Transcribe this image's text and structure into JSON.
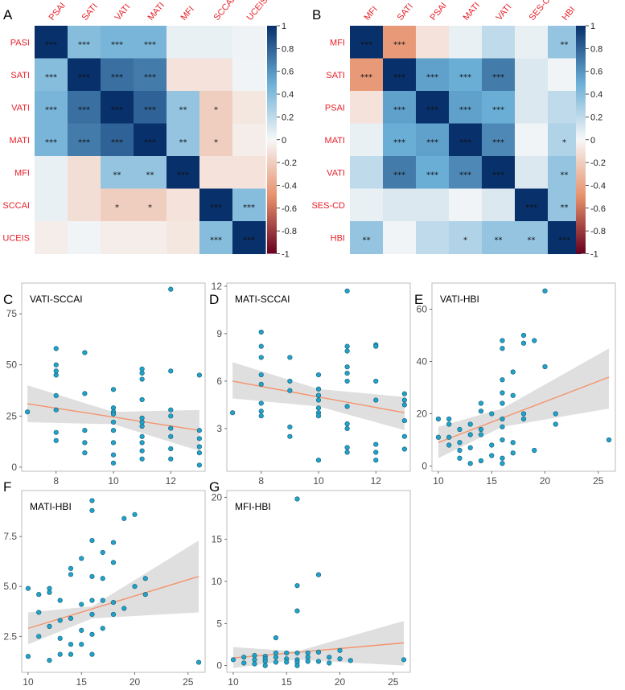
{
  "colors": {
    "neg_strong": "#67001f",
    "neg_mid": "#e6906a",
    "zero": "#f7f7f7",
    "pos_mid": "#6aaed6",
    "pos_strong": "#08306b",
    "point_fill": "#1fa3c8",
    "point_stroke": "#1a5a73",
    "line": "#f4936c",
    "band": "#d9d9d9",
    "label_red": "#e8202a"
  },
  "colorbar_ticks": [
    "1",
    "0.8",
    "0.6",
    "0.4",
    "0.2",
    "0",
    "-0.2",
    "-0.4",
    "-0.6",
    "-0.8",
    "-1"
  ],
  "chart_data": [
    {
      "type": "heatmap",
      "panel": "A",
      "col_labels": [
        "PSAI",
        "SATI",
        "VATI",
        "MATI",
        "MFI",
        "SCCAI",
        "UCEIS"
      ],
      "row_labels": [
        "PASI",
        "SATI",
        "VATI",
        "MATI",
        "MFI",
        "SCCAI",
        "UCEIS"
      ],
      "values": [
        [
          1.0,
          0.4,
          0.45,
          0.45,
          0.05,
          0.05,
          0.03
        ],
        [
          0.4,
          1.0,
          0.75,
          0.7,
          -0.1,
          -0.1,
          0.02
        ],
        [
          0.45,
          0.75,
          1.0,
          0.8,
          0.35,
          -0.2,
          -0.08
        ],
        [
          0.45,
          0.7,
          0.8,
          1.0,
          0.35,
          -0.2,
          -0.05
        ],
        [
          0.05,
          -0.12,
          0.35,
          0.35,
          1.0,
          -0.1,
          -0.1
        ],
        [
          0.05,
          -0.12,
          -0.2,
          -0.2,
          -0.1,
          1.0,
          0.4
        ],
        [
          -0.05,
          0.02,
          -0.05,
          -0.05,
          -0.08,
          0.4,
          1.0
        ]
      ],
      "stars": [
        [
          "***",
          "***",
          "***",
          "***",
          "",
          "",
          ""
        ],
        [
          "***",
          "***",
          "***",
          "***",
          "",
          "",
          ""
        ],
        [
          "***",
          "***",
          "***",
          "***",
          "**",
          "*",
          ""
        ],
        [
          "***",
          "***",
          "***",
          "***",
          "**",
          "*",
          ""
        ],
        [
          "",
          "",
          "**",
          "**",
          "***",
          "",
          ""
        ],
        [
          "",
          "",
          "*",
          "*",
          "",
          "***",
          "***"
        ],
        [
          "",
          "",
          "",
          "",
          "",
          "***",
          "***"
        ]
      ],
      "color_range": [
        -1,
        1
      ]
    },
    {
      "type": "heatmap",
      "panel": "B",
      "col_labels": [
        "MFI",
        "SATI",
        "PSAI",
        "MATI",
        "VATI",
        "SES-CD",
        "HBI"
      ],
      "row_labels": [
        "MFI",
        "SATI",
        "PSAI",
        "MATI",
        "VATI",
        "SES-CD",
        "HBI"
      ],
      "values": [
        [
          1.0,
          -0.45,
          -0.1,
          0.05,
          0.2,
          0.05,
          0.35
        ],
        [
          -0.45,
          1.0,
          0.55,
          0.5,
          0.7,
          0.1,
          0.02
        ],
        [
          -0.1,
          0.55,
          1.0,
          0.55,
          0.5,
          0.1,
          0.2
        ],
        [
          0.05,
          0.5,
          0.55,
          1.0,
          0.65,
          0.02,
          0.25
        ],
        [
          0.2,
          0.7,
          0.5,
          0.65,
          1.0,
          0.1,
          0.35
        ],
        [
          0.05,
          0.1,
          0.1,
          0.02,
          0.1,
          1.0,
          0.35
        ],
        [
          0.35,
          0.02,
          0.2,
          0.25,
          0.35,
          0.35,
          1.0
        ]
      ],
      "stars": [
        [
          "***",
          "***",
          "",
          "",
          "",
          "",
          "**"
        ],
        [
          "***",
          "***",
          "***",
          "***",
          "***",
          "",
          ""
        ],
        [
          "",
          "***",
          "***",
          "***",
          "***",
          "",
          ""
        ],
        [
          "",
          "***",
          "***",
          "***",
          "***",
          "",
          "*"
        ],
        [
          "",
          "***",
          "***",
          "***",
          "***",
          "",
          "**"
        ],
        [
          "",
          "",
          "",
          "",
          "",
          "***",
          "**"
        ],
        [
          "**",
          "",
          "",
          "*",
          "**",
          "**",
          "***"
        ]
      ],
      "color_range": [
        -1,
        1
      ]
    },
    {
      "type": "scatter",
      "panel": "C",
      "title": "VATI-SCCAI",
      "xlim": [
        6.8,
        13.2
      ],
      "ylim": [
        -2,
        90
      ],
      "xticks": [
        8,
        10,
        12
      ],
      "yticks": [
        0,
        25,
        50,
        75
      ],
      "fit_line": [
        [
          7,
          31
        ],
        [
          13,
          18
        ]
      ],
      "band": [
        [
          7,
          22,
          40
        ],
        [
          10,
          21,
          27
        ],
        [
          13,
          8,
          28
        ]
      ],
      "x": [
        7,
        8,
        8,
        8,
        8,
        8,
        8,
        8,
        8,
        9,
        9,
        9,
        9,
        9,
        10,
        10,
        10,
        10,
        10,
        10,
        10,
        10,
        10,
        11,
        11,
        11,
        11,
        11,
        11,
        11,
        11,
        11,
        11,
        11,
        12,
        12,
        12,
        12,
        12,
        12,
        12,
        12,
        13,
        13,
        13,
        13,
        13,
        13
      ],
      "y": [
        27,
        58,
        50,
        45,
        35,
        28,
        17,
        13,
        47,
        56,
        36,
        18,
        12,
        7,
        38,
        29,
        27,
        26,
        22,
        18,
        12,
        6,
        2,
        48,
        46,
        43,
        33,
        24,
        22,
        20,
        15,
        12,
        8,
        4,
        87,
        47,
        28,
        25,
        19,
        15,
        9,
        4,
        45,
        18,
        14,
        10,
        7,
        1
      ]
    },
    {
      "type": "scatter",
      "panel": "D",
      "title": "MATI-SCCAI",
      "xlim": [
        6.8,
        13.2
      ],
      "ylim": [
        0.3,
        12.2
      ],
      "xticks": [
        8,
        10,
        12
      ],
      "yticks": [
        3,
        6,
        9,
        12
      ],
      "fit_line": [
        [
          7,
          6.0
        ],
        [
          13,
          4.0
        ]
      ],
      "band": [
        [
          7,
          4.9,
          7.2
        ],
        [
          10,
          4.4,
          5.5
        ],
        [
          13,
          2.9,
          5.0
        ]
      ],
      "x": [
        7,
        8,
        8,
        8,
        8,
        8,
        8,
        8,
        8,
        9,
        9,
        9,
        9,
        9,
        10,
        10,
        10,
        10,
        10,
        10,
        10,
        10,
        11,
        11,
        11,
        11,
        11,
        11,
        11,
        11,
        11,
        11,
        11,
        12,
        12,
        12,
        12,
        12,
        12,
        12,
        13,
        13,
        13,
        13,
        13,
        13
      ],
      "y": [
        4,
        9.1,
        8.2,
        7.5,
        6.4,
        5.8,
        4.6,
        4.1,
        3.8,
        7.5,
        6.0,
        5.4,
        3.1,
        2.5,
        6.4,
        5.5,
        5.1,
        4.8,
        4.3,
        4.0,
        3.8,
        1.0,
        11.7,
        8.2,
        7.9,
        6.9,
        6.5,
        4.4,
        3.3,
        3.0,
        1.8,
        1.5,
        6.0,
        8.3,
        8.2,
        6.0,
        4.8,
        2.0,
        1.5,
        1.0,
        5.2,
        4.8,
        4.5,
        3.5,
        2.5,
        1.7
      ]
    },
    {
      "type": "scatter",
      "panel": "E",
      "title": "VATI-HBI",
      "xlim": [
        9.4,
        26.6
      ],
      "ylim": [
        -2,
        70
      ],
      "xticks": [
        10,
        15,
        20,
        25
      ],
      "yticks": [
        0,
        20,
        40,
        60
      ],
      "fit_line": [
        [
          10,
          9
        ],
        [
          26,
          34
        ]
      ],
      "band": [
        [
          10,
          3,
          15
        ],
        [
          16,
          15,
          22
        ],
        [
          26,
          22,
          45
        ]
      ],
      "x": [
        10,
        10,
        11,
        11,
        11,
        11,
        12,
        12,
        12,
        12,
        13,
        13,
        13,
        13,
        14,
        14,
        14,
        14,
        14,
        15,
        15,
        15,
        16,
        16,
        16,
        16,
        16,
        16,
        16,
        16,
        16,
        16,
        17,
        17,
        17,
        17,
        18,
        18,
        18,
        18,
        19,
        19,
        20,
        20,
        21,
        21,
        26
      ],
      "y": [
        18,
        11,
        18,
        16,
        11,
        8,
        14,
        9,
        6,
        3,
        16,
        12,
        7,
        1,
        24,
        21,
        14,
        12,
        2,
        20,
        8,
        4,
        48,
        45,
        33,
        28,
        24,
        18,
        15,
        10,
        3,
        1,
        36,
        27,
        9,
        5,
        50,
        47,
        20,
        18,
        48,
        6,
        67,
        38,
        20,
        16,
        10
      ]
    },
    {
      "type": "scatter",
      "panel": "F",
      "title": "MATI-HBI",
      "xlim": [
        9.4,
        26.6
      ],
      "ylim": [
        0.7,
        9.8
      ],
      "xticks": [
        10,
        15,
        20,
        25
      ],
      "yticks": [
        2.5,
        5.0,
        7.5
      ],
      "ytick_labels": [
        "2.5",
        "5.0",
        "7.5"
      ],
      "xtick_labels": [
        "10",
        "15",
        "20",
        "25"
      ],
      "fit_line": [
        [
          10,
          2.9
        ],
        [
          26,
          5.5
        ]
      ],
      "band": [
        [
          10,
          2.1,
          3.7
        ],
        [
          16,
          3.4,
          4.0
        ],
        [
          26,
          3.7,
          7.3
        ]
      ],
      "x": [
        10,
        10,
        11,
        11,
        11,
        12,
        12,
        12,
        12,
        13,
        13,
        13,
        13,
        14,
        14,
        14,
        14,
        14,
        15,
        15,
        15,
        15,
        16,
        16,
        16,
        16,
        16,
        16,
        16,
        16,
        17,
        17,
        17,
        17,
        18,
        18,
        18,
        18,
        19,
        19,
        20,
        20,
        21,
        21,
        26
      ],
      "y": [
        4.9,
        1.5,
        4.6,
        3.7,
        2.5,
        4.9,
        4.7,
        3.0,
        1.3,
        4.3,
        3.3,
        2.4,
        1.6,
        5.9,
        5.6,
        3.4,
        2.1,
        1.6,
        6.4,
        4.1,
        2.8,
        2.1,
        9.3,
        8.8,
        7.3,
        5.5,
        4.3,
        3.6,
        2.6,
        1.6,
        6.7,
        5.4,
        4.3,
        2.9,
        7.2,
        6.2,
        4.2,
        3.6,
        8.4,
        3.9,
        8.6,
        5.0,
        5.4,
        4.6,
        1.2
      ]
    },
    {
      "type": "scatter",
      "panel": "G",
      "title": "MFI-HBI",
      "xlim": [
        9.4,
        26.6
      ],
      "ylim": [
        -0.8,
        20.8
      ],
      "xticks": [
        10,
        15,
        20,
        25
      ],
      "yticks": [
        0,
        5,
        10,
        15,
        20
      ],
      "fit_line": [
        [
          10,
          0.9
        ],
        [
          26,
          2.7
        ]
      ],
      "band": [
        [
          10,
          -0.3,
          2.2
        ],
        [
          16,
          0.7,
          1.7
        ],
        [
          26,
          0.0,
          5.3
        ]
      ],
      "x": [
        10,
        11,
        11,
        12,
        12,
        12,
        13,
        13,
        13,
        13,
        14,
        14,
        14,
        14,
        15,
        15,
        15,
        16,
        16,
        16,
        16,
        16,
        16,
        16,
        17,
        17,
        17,
        18,
        18,
        18,
        19,
        19,
        20,
        20,
        21,
        26
      ],
      "y": [
        0.7,
        1.0,
        0.3,
        1.2,
        0.7,
        0.2,
        1.1,
        0.8,
        0.5,
        0.0,
        3.3,
        1.5,
        1.0,
        0.4,
        1.5,
        0.8,
        0.4,
        19.8,
        9.5,
        6.5,
        1.5,
        0.7,
        0.4,
        0.0,
        1.5,
        1.0,
        0.5,
        10.8,
        1.6,
        0.5,
        1.0,
        0.3,
        1.8,
        0.8,
        0.6,
        0.7
      ]
    }
  ]
}
